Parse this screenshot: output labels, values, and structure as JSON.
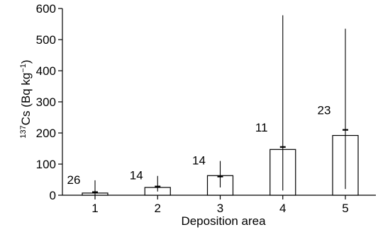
{
  "chart_data": {
    "type": "bar",
    "xlabel": "Deposition area",
    "ylabel": {
      "prefix_sup": "137",
      "main": "Cs (Bq kg",
      "unit_sup": "−1",
      "suffix": ")"
    },
    "categories": [
      "1",
      "2",
      "3",
      "4",
      "5"
    ],
    "series": [
      {
        "values": [
          7,
          25,
          63,
          147,
          192
        ],
        "mean": [
          10,
          28,
          60,
          155,
          210
        ],
        "range_low": [
          0,
          12,
          25,
          15,
          20
        ],
        "range_high": [
          48,
          62,
          110,
          578,
          535
        ],
        "sample_counts": [
          "26",
          "14",
          "14",
          "11",
          "23"
        ]
      }
    ],
    "ylim": [
      0,
      600
    ],
    "yticks": [
      "0",
      "100",
      "200",
      "300",
      "400",
      "500",
      "600"
    ],
    "grid": false,
    "legend": "none",
    "colors": {
      "bar_fill": "#ffffff",
      "stroke": "#000000"
    }
  }
}
